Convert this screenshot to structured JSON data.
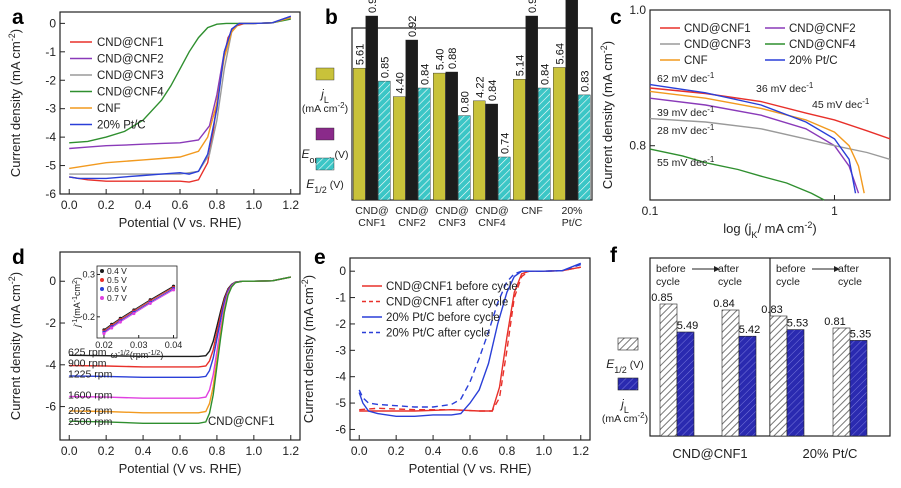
{
  "chart_data": [
    {
      "id": "a",
      "panel_label": "a",
      "type": "line",
      "xlabel": "Potential (V vs. RHE)",
      "ylabel": "Current density (mA cm",
      "ylabel_sup": "-2",
      "ylabel_end": ")",
      "xlim": [
        -0.05,
        1.25
      ],
      "ylim": [
        -6.0,
        0.4
      ],
      "xticks": [
        "0.0",
        "0.2",
        "0.4",
        "0.6",
        "0.8",
        "1.0",
        "1.2"
      ],
      "xtick_values": [
        0,
        0.2,
        0.4,
        0.6,
        0.8,
        1.0,
        1.2
      ],
      "yticks": [
        "0",
        "-1",
        "-2",
        "-3",
        "-4",
        "-5",
        "-6"
      ],
      "ytick_values": [
        0,
        -1,
        -2,
        -3,
        -4,
        -5,
        -6
      ],
      "series": [
        {
          "name": "CND@CNF1",
          "color": "#e8302a",
          "x": [
            0,
            0.1,
            0.2,
            0.3,
            0.4,
            0.5,
            0.6,
            0.65,
            0.7,
            0.75,
            0.78,
            0.82,
            0.86,
            0.9,
            0.95,
            1.0,
            1.1,
            1.2
          ],
          "y": [
            -5.4,
            -5.5,
            -5.55,
            -5.55,
            -5.55,
            -5.55,
            -5.55,
            -5.58,
            -5.5,
            -4.9,
            -3.8,
            -1.8,
            -0.5,
            -0.1,
            0,
            0,
            0.02,
            0.2
          ]
        },
        {
          "name": "CND@CNF2",
          "color": "#8a3ab9",
          "x": [
            0,
            0.1,
            0.2,
            0.3,
            0.4,
            0.5,
            0.6,
            0.7,
            0.76,
            0.8,
            0.84,
            0.88,
            0.92,
            1.0,
            1.1,
            1.2
          ],
          "y": [
            -4.4,
            -4.35,
            -4.3,
            -4.28,
            -4.25,
            -4.22,
            -4.2,
            -4.1,
            -3.6,
            -2.5,
            -1.0,
            -0.2,
            0,
            0,
            0.02,
            0.25
          ]
        },
        {
          "name": "CND@CNF3",
          "color": "#9a9a9a",
          "x": [
            0,
            0.1,
            0.2,
            0.3,
            0.4,
            0.5,
            0.6,
            0.7,
            0.76,
            0.8,
            0.84,
            0.88,
            0.92,
            1.0,
            1.1,
            1.2
          ],
          "y": [
            -5.3,
            -5.3,
            -5.3,
            -5.3,
            -5.3,
            -5.3,
            -5.3,
            -5.2,
            -4.6,
            -3.4,
            -1.6,
            -0.3,
            0,
            0,
            0.02,
            0.2
          ]
        },
        {
          "name": "CND@CNF4",
          "color": "#2f8f2f",
          "x": [
            0,
            0.1,
            0.2,
            0.3,
            0.4,
            0.5,
            0.55,
            0.6,
            0.65,
            0.7,
            0.75,
            0.8,
            0.85,
            0.9,
            1.0,
            1.1,
            1.2
          ],
          "y": [
            -4.2,
            -4.15,
            -4.0,
            -3.8,
            -3.4,
            -2.7,
            -2.2,
            -1.6,
            -1.0,
            -0.5,
            -0.15,
            -0.03,
            0,
            0,
            0,
            0.02,
            0.15
          ]
        },
        {
          "name": "CNF",
          "color": "#f29a1f",
          "x": [
            0,
            0.1,
            0.2,
            0.3,
            0.4,
            0.5,
            0.6,
            0.7,
            0.75,
            0.8,
            0.84,
            0.88,
            0.92,
            1.0,
            1.1,
            1.2
          ],
          "y": [
            -5.1,
            -5.0,
            -4.9,
            -4.85,
            -4.8,
            -4.75,
            -4.7,
            -4.5,
            -4.0,
            -2.8,
            -1.2,
            -0.3,
            0,
            0,
            0.02,
            0.2
          ]
        },
        {
          "name": "20% Pt/C",
          "color": "#2a3fd8",
          "x": [
            0,
            0.05,
            0.1,
            0.2,
            0.3,
            0.4,
            0.5,
            0.6,
            0.65,
            0.7,
            0.75,
            0.8,
            0.84,
            0.88,
            0.92,
            1.0,
            1.1,
            1.2
          ],
          "y": [
            -5.4,
            -5.45,
            -5.45,
            -5.45,
            -5.4,
            -5.35,
            -5.3,
            -5.25,
            -5.3,
            -5.2,
            -4.6,
            -3.0,
            -1.0,
            -0.2,
            0,
            0,
            0.02,
            0.25
          ]
        }
      ]
    },
    {
      "id": "b",
      "panel_label": "b",
      "type": "bar",
      "categories": [
        "CND@\nCNF1",
        "CND@\nCNF2",
        "CND@\nCNF3",
        "CND@\nCNF4",
        "CNF",
        "20%\nPt/C"
      ],
      "series": [
        {
          "name": "jL",
          "legend": "j",
          "legend_sub": "L",
          "legend_unit": "(mA cm",
          "legend_unit_sup": "-2",
          "legend_unit_end": ")",
          "color": "#c9c23a",
          "values": [
            5.61,
            4.4,
            5.4,
            4.22,
            5.14,
            5.64
          ],
          "labels": [
            "5.61",
            "4.40",
            "5.40",
            "4.22",
            "5.14",
            "5.64"
          ]
        },
        {
          "name": "Eonset",
          "legend": "E",
          "legend_sub": "onset",
          "legend_unit": "(V)",
          "color": "#1c1c1c",
          "values": [
            0.95,
            0.92,
            0.88,
            0.84,
            0.95,
            0.97
          ],
          "labels": [
            "0.95",
            "0.92",
            "0.88",
            "0.84",
            "0.95",
            "0.97"
          ]
        },
        {
          "name": "E1/2",
          "legend": "E",
          "legend_sub": "1/2",
          "legend_unit": "(V)",
          "color": "#3bc6c6",
          "values": [
            0.85,
            0.84,
            0.8,
            0.74,
            0.84,
            0.83
          ],
          "labels": [
            "0.85",
            "0.84",
            "0.80",
            "0.74",
            "0.84",
            "0.83"
          ]
        }
      ],
      "legend_marker_colors": [
        "#c9c23a",
        "#8a2a8a",
        "#3bc6c6"
      ]
    },
    {
      "id": "c",
      "panel_label": "c",
      "type": "line",
      "xscale": "log",
      "xlabel": "log (j",
      "xlabel_sub": "K",
      "xlabel_end": "/ mA cm",
      "xlabel_sup": "-2",
      "xlabel_close": ")",
      "ylabel": "Current density (mA cm",
      "ylabel_sup": "-2",
      "ylabel_end": ")",
      "xlim": [
        0.1,
        2.0
      ],
      "ylim": [
        0.72,
        1.0
      ],
      "xticks": [
        "0.1",
        "1"
      ],
      "xtick_values": [
        0.1,
        1
      ],
      "yticks": [
        "1.0",
        "0.8"
      ],
      "ytick_values": [
        1.0,
        0.8
      ],
      "series": [
        {
          "name": "CND@CNF1",
          "color": "#e8302a",
          "x": [
            0.1,
            0.2,
            0.4,
            0.7,
            1.0,
            1.5,
            2.0
          ],
          "y": [
            0.885,
            0.877,
            0.865,
            0.848,
            0.838,
            0.822,
            0.81
          ]
        },
        {
          "name": "CND@CNF2",
          "color": "#8a3ab9",
          "x": [
            0.1,
            0.2,
            0.4,
            0.7,
            1.0,
            1.2,
            1.35
          ],
          "y": [
            0.87,
            0.86,
            0.845,
            0.825,
            0.8,
            0.77,
            0.73
          ]
        },
        {
          "name": "CND@CNF3",
          "color": "#9a9a9a",
          "x": [
            0.1,
            0.2,
            0.4,
            0.7,
            1.0,
            1.5,
            2.0
          ],
          "y": [
            0.84,
            0.835,
            0.825,
            0.81,
            0.8,
            0.79,
            0.78
          ]
        },
        {
          "name": "CND@CNF4",
          "color": "#2f8f2f",
          "x": [
            0.1,
            0.15,
            0.2,
            0.3,
            0.4,
            0.55,
            0.75,
            0.88
          ],
          "y": [
            0.795,
            0.785,
            0.775,
            0.765,
            0.755,
            0.745,
            0.73,
            0.72
          ]
        },
        {
          "name": "CNF",
          "color": "#f29a1f",
          "x": [
            0.1,
            0.2,
            0.4,
            0.7,
            1.0,
            1.2,
            1.35,
            1.45
          ],
          "y": [
            0.88,
            0.87,
            0.855,
            0.838,
            0.82,
            0.8,
            0.77,
            0.73
          ]
        },
        {
          "name": "20% Pt/C",
          "color": "#2a3fd8",
          "x": [
            0.1,
            0.2,
            0.4,
            0.7,
            1.0,
            1.2,
            1.3
          ],
          "y": [
            0.89,
            0.878,
            0.86,
            0.835,
            0.81,
            0.78,
            0.73
          ]
        }
      ],
      "annotations": [
        {
          "text": "62 mV dec",
          "sup": "-1",
          "color": "#2a3fd8"
        },
        {
          "text": "36 mV dec",
          "sup": "-1",
          "color": "#e8302a"
        },
        {
          "text": "45 mV dec",
          "sup": "-1",
          "color": "#f29a1f"
        },
        {
          "text": "39 mV dec",
          "sup": "-1",
          "color": "#8a3ab9"
        },
        {
          "text": "28 mV dec",
          "sup": "-1",
          "color": "#8a8a8a"
        },
        {
          "text": "55 mV dec",
          "sup": "-1",
          "color": "#2f8f2f"
        }
      ]
    },
    {
      "id": "d",
      "panel_label": "d",
      "type": "line",
      "xlabel": "Potential (V vs. RHE)",
      "ylabel": "Current density (mA cm",
      "ylabel_sup": "-2",
      "ylabel_end": ")",
      "xlim": [
        -0.05,
        1.25
      ],
      "ylim": [
        -7.6,
        1.4
      ],
      "xticks": [
        "0.0",
        "0.2",
        "0.4",
        "0.6",
        "0.8",
        "1.0",
        "1.2"
      ],
      "xtick_values": [
        0,
        0.2,
        0.4,
        0.6,
        0.8,
        1.0,
        1.2
      ],
      "yticks": [
        "0",
        "-2",
        "-4",
        "-6"
      ],
      "ytick_values": [
        0,
        -2,
        -4,
        -6
      ],
      "annotation": "CND@CNF1",
      "series": [
        {
          "name": "625 rpm",
          "color": "#1c1c1c",
          "limit": -3.6
        },
        {
          "name": "900 rpm",
          "color": "#e8302a",
          "limit": -4.1
        },
        {
          "name": "1225 rpm",
          "color": "#2a3fd8",
          "limit": -4.6
        },
        {
          "name": "1600 rpm",
          "color": "#e040e0",
          "limit": -5.6
        },
        {
          "name": "2025 rpm",
          "color": "#f29a1f",
          "limit": -6.3
        },
        {
          "name": "2500 rpm",
          "color": "#2f8f2f",
          "limit": -6.8
        }
      ],
      "inset": {
        "type": "scatter",
        "xlabel": "ω",
        "xlabel_sup": "-1/2",
        "xlabel_unit": "(rpm",
        "xlabel_unit_sup": "-1/2",
        "xlabel_end": ")",
        "ylabel": "j",
        "ylabel_sup": "-1",
        "ylabel_unit": "(mA",
        "ylabel_unit_sup": "-1",
        "ylabel_unit2": "cm",
        "ylabel_unit2_sup": "2",
        "ylabel_end": ")",
        "xlim": [
          0.018,
          0.041
        ],
        "ylim": [
          0.15,
          0.32
        ],
        "xticks": [
          "0.02",
          "0.03",
          "0.04"
        ],
        "xtick_values": [
          0.02,
          0.03,
          0.04
        ],
        "yticks": [
          "0.3",
          "0.2"
        ],
        "ytick_values": [
          0.3,
          0.2
        ],
        "x": [
          0.02,
          0.0222,
          0.0247,
          0.0286,
          0.0333,
          0.04
        ],
        "y": [
          0.165,
          0.178,
          0.192,
          0.212,
          0.236,
          0.268
        ],
        "legend": [
          {
            "name": "0.4 V",
            "color": "#1c1c1c"
          },
          {
            "name": "0.5 V",
            "color": "#e8302a"
          },
          {
            "name": "0.6 V",
            "color": "#2a3fd8"
          },
          {
            "name": "0.7 V",
            "color": "#e040e0"
          }
        ]
      }
    },
    {
      "id": "e",
      "panel_label": "e",
      "type": "line",
      "xlabel": "Potential (V vs. RHE)",
      "ylabel": "Current density (mA cm",
      "ylabel_sup": "-2",
      "ylabel_end": ")",
      "xlim": [
        -0.05,
        1.25
      ],
      "ylim": [
        -6.4,
        0.5
      ],
      "xticks": [
        "0.0",
        "0.2",
        "0.4",
        "0.6",
        "0.8",
        "1.0",
        "1.2"
      ],
      "xtick_values": [
        0,
        0.2,
        0.4,
        0.6,
        0.8,
        1.0,
        1.2
      ],
      "yticks": [
        "0",
        "-1",
        "-2",
        "-3",
        "-4",
        "-5",
        "-6"
      ],
      "ytick_values": [
        0,
        -1,
        -2,
        -3,
        -4,
        -5,
        -6
      ],
      "series": [
        {
          "name": "CND@CNF1 before cycle",
          "color": "#e8302a",
          "dash": "",
          "x": [
            0,
            0.1,
            0.3,
            0.5,
            0.65,
            0.72,
            0.76,
            0.8,
            0.84,
            0.88,
            0.92,
            1.0,
            1.1,
            1.2
          ],
          "y": [
            -5.3,
            -5.3,
            -5.3,
            -5.25,
            -5.3,
            -5.3,
            -4.4,
            -2.5,
            -0.8,
            -0.1,
            0,
            0,
            0.02,
            0.15
          ]
        },
        {
          "name": "CND@CNF1 after cycle",
          "color": "#e8302a",
          "dash": "6,4",
          "x": [
            0,
            0.1,
            0.3,
            0.5,
            0.65,
            0.72,
            0.76,
            0.8,
            0.84,
            0.88,
            0.92,
            1.0,
            1.1,
            1.2
          ],
          "y": [
            -5.25,
            -5.2,
            -5.25,
            -5.25,
            -5.3,
            -5.3,
            -4.8,
            -3.0,
            -1.0,
            -0.2,
            0,
            0,
            0.02,
            0.15
          ]
        },
        {
          "name": "20% Pt/C before cycle",
          "color": "#2a3fd8",
          "dash": "",
          "x": [
            0,
            0.02,
            0.05,
            0.1,
            0.2,
            0.3,
            0.4,
            0.5,
            0.55,
            0.6,
            0.65,
            0.7,
            0.75,
            0.8,
            0.84,
            0.88,
            0.92,
            1.0,
            1.1,
            1.2
          ],
          "y": [
            -4.6,
            -5.0,
            -5.3,
            -5.4,
            -5.5,
            -5.5,
            -5.45,
            -5.45,
            -5.4,
            -5.0,
            -4.5,
            -3.5,
            -2.0,
            -0.8,
            -0.2,
            0,
            0,
            0,
            0.02,
            0.3
          ]
        },
        {
          "name": "20% Pt/C after cycle",
          "color": "#2a3fd8",
          "dash": "6,4",
          "x": [
            0,
            0.02,
            0.05,
            0.1,
            0.2,
            0.3,
            0.4,
            0.5,
            0.55,
            0.6,
            0.65,
            0.7,
            0.75,
            0.8,
            0.84,
            0.88,
            0.92,
            1.0,
            1.1,
            1.2
          ],
          "y": [
            -4.5,
            -4.8,
            -5.0,
            -5.05,
            -5.1,
            -5.15,
            -5.15,
            -5.05,
            -4.85,
            -4.2,
            -3.3,
            -2.3,
            -1.2,
            -0.4,
            -0.1,
            0,
            0,
            0,
            0.02,
            0.25
          ]
        }
      ]
    },
    {
      "id": "f",
      "panel_label": "f",
      "type": "bar",
      "groups": [
        "CND@CNF1",
        "20% Pt/C"
      ],
      "subgroup_text": [
        "before\ncycle",
        "after\ncycle"
      ],
      "series": [
        {
          "name": "E1/2",
          "legend": "E",
          "legend_sub": "1/2",
          "legend_unit": "(V)",
          "color": "#9a9a9a",
          "values": [
            [
              0.85,
              0.84
            ],
            [
              0.83,
              0.81
            ]
          ],
          "labels": [
            [
              "0.85",
              "0.84"
            ],
            [
              "0.83",
              "0.81"
            ]
          ]
        },
        {
          "name": "jL",
          "legend": "j",
          "legend_sub": "L",
          "legend_unit": "(mA cm",
          "legend_unit_sup": "-2",
          "legend_unit_end": ")",
          "color": "#2a2ab0",
          "values": [
            [
              5.49,
              5.42
            ],
            [
              5.53,
              5.35
            ]
          ],
          "labels": [
            [
              "5.49",
              "5.42"
            ],
            [
              "5.53",
              "5.35"
            ]
          ]
        }
      ]
    }
  ]
}
